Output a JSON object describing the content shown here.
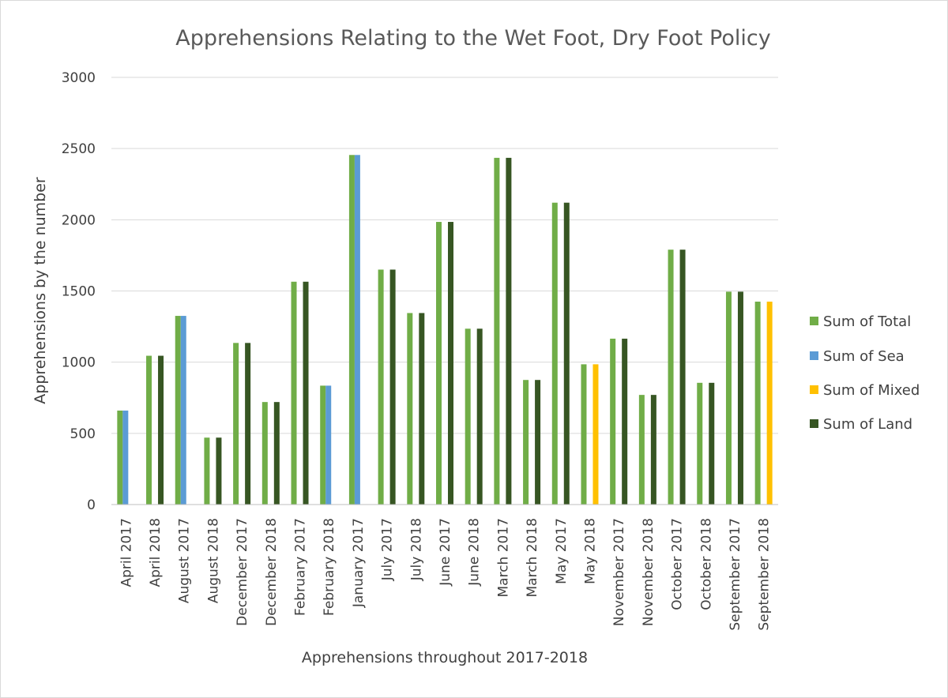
{
  "chart_data": {
    "type": "bar",
    "title": "Apprehensions Relating to the Wet Foot, Dry Foot Policy",
    "xlabel": "Apprehensions throughout 2017-2018",
    "ylabel": "Apprehensions by the number",
    "ylim": [
      0,
      3000
    ],
    "yticks": [
      0,
      500,
      1000,
      1500,
      2000,
      2500,
      3000
    ],
    "grid": true,
    "legend_position": "right",
    "categories": [
      "April 2017",
      "April 2018",
      "August 2017",
      "August 2018",
      "December 2017",
      "December 2018",
      "February 2017",
      "February 2018",
      "January 2017",
      "July 2017",
      "July 2018",
      "June 2017",
      "June 2018",
      "March 2017",
      "March 2018",
      "May 2017",
      "May 2018",
      "November 2017",
      "November 2018",
      "October 2017",
      "October 2018",
      "September 2017",
      "September 2018"
    ],
    "series": [
      {
        "name": "Sum of Total",
        "color": "#70ad47",
        "values": [
          660,
          1045,
          1325,
          470,
          1135,
          720,
          1565,
          835,
          2455,
          1650,
          1345,
          1985,
          1235,
          2435,
          875,
          2120,
          985,
          1165,
          770,
          1790,
          855,
          1495,
          1425
        ]
      },
      {
        "name": "Sum of Sea",
        "color": "#5b9bd5",
        "values": [
          660,
          null,
          1325,
          null,
          null,
          null,
          null,
          835,
          2455,
          null,
          null,
          null,
          null,
          null,
          null,
          null,
          null,
          null,
          null,
          null,
          null,
          null,
          null
        ]
      },
      {
        "name": "Sum of Mixed",
        "color": "#ffc000",
        "values": [
          null,
          null,
          null,
          null,
          null,
          null,
          null,
          null,
          null,
          null,
          null,
          null,
          null,
          null,
          null,
          null,
          985,
          null,
          null,
          null,
          null,
          null,
          1425
        ]
      },
      {
        "name": "Sum of Land",
        "color": "#375623",
        "values": [
          null,
          1045,
          null,
          470,
          1135,
          720,
          1565,
          null,
          null,
          1650,
          1345,
          1985,
          1235,
          2435,
          875,
          2120,
          null,
          1165,
          770,
          1790,
          855,
          1495,
          null
        ]
      }
    ]
  },
  "colors": {
    "background": "#ffffff",
    "gridline": "#d9d9d9",
    "text": "#404040",
    "title": "#595959"
  }
}
